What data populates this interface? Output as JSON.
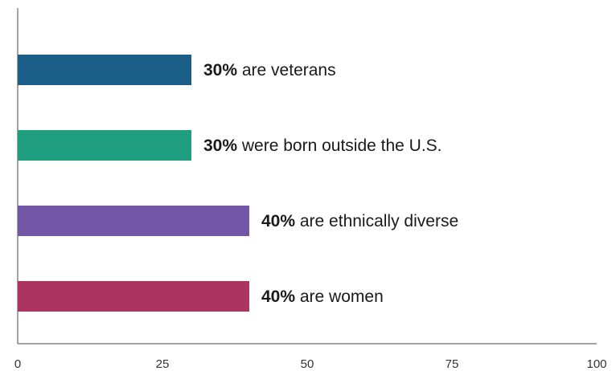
{
  "chart_data": {
    "type": "bar",
    "orientation": "horizontal",
    "categories": [
      "are veterans",
      "were born outside the U.S.",
      "are ethnically diverse",
      "are women"
    ],
    "values": [
      30,
      30,
      40,
      40
    ],
    "value_labels": [
      "30%",
      "30%",
      "40%",
      "40%"
    ],
    "colors": [
      "#1b5e87",
      "#1e9e7e",
      "#7456a6",
      "#ac3461"
    ],
    "xlim": [
      0,
      100
    ],
    "x_ticks": [
      0,
      25,
      50,
      75,
      100
    ],
    "x_tick_labels": [
      "0",
      "25",
      "50",
      "75",
      "100"
    ],
    "title": "",
    "xlabel": "",
    "ylabel": "",
    "grid": false,
    "legend": "none"
  }
}
